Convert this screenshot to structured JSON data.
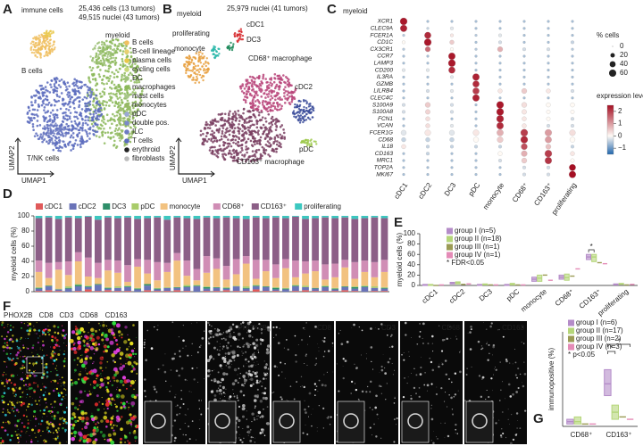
{
  "panel_a": {
    "letter": "A",
    "title": "immune cells",
    "subtitle_lines": [
      "25,436 cells (13 tumors)",
      "49,515 nuclei (43 tumors)"
    ],
    "cluster_labels": [
      {
        "name": "B cells",
        "color": "#e2b33c"
      },
      {
        "name": "myeloid",
        "color": "#8cb85a"
      },
      {
        "name": "T/NK cells",
        "color": "#5a6bbd"
      }
    ],
    "x_label": "UMAP1",
    "y_label": "UMAP2",
    "legend": [
      {
        "name": "B cells",
        "color": "#f0c060"
      },
      {
        "name": "B-cell lineage",
        "color": "#e8d070"
      },
      {
        "name": "plasma cells",
        "color": "#e9c84a"
      },
      {
        "name": "cycling cells",
        "color": "#c7d97a"
      },
      {
        "name": "DC",
        "color": "#9fc27a"
      },
      {
        "name": "macrophages",
        "color": "#8cb85a"
      },
      {
        "name": "mast cells",
        "color": "#a8c68a"
      },
      {
        "name": "monocytes",
        "color": "#95b864"
      },
      {
        "name": "pDC",
        "color": "#9ba9d4"
      },
      {
        "name": "double pos.",
        "color": "#7b8ac8"
      },
      {
        "name": "ILC",
        "color": "#6d7bc2"
      },
      {
        "name": "T cells",
        "color": "#5a6bbd"
      },
      {
        "name": "erythroid",
        "color": "#222222"
      },
      {
        "name": "fibroblasts",
        "color": "#bbbbbb"
      }
    ]
  },
  "panel_b": {
    "letter": "B",
    "title": "myeloid",
    "subtitle": "25,979 nuclei (41 tumors)",
    "x_label": "UMAP1",
    "y_label": "UMAP2",
    "cluster_labels": [
      {
        "name": "proliferating",
        "color": "#2ab7a9"
      },
      {
        "name": "cDC1",
        "color": "#d6282b"
      },
      {
        "name": "DC3",
        "color": "#1d8a5a"
      },
      {
        "name": "monocyte",
        "color": "#e8a040"
      },
      {
        "name": "CD68⁺ macrophage",
        "color": "#b8457a"
      },
      {
        "name": "cDC2",
        "color": "#3a4b9a"
      },
      {
        "name": "pDC",
        "color": "#9ec94c"
      },
      {
        "name": "CD163⁺ macrophage",
        "color": "#7a3f62"
      }
    ]
  },
  "panel_c": {
    "letter": "C",
    "title": "myeloid",
    "genes": [
      "XCR1",
      "CLEC9A",
      "FCER1A",
      "CD1C",
      "CX3CR1",
      "CCR7",
      "LAMP3",
      "CD200",
      "IL3RA",
      "GZMB",
      "LILRB4",
      "CLEC4C",
      "S100A9",
      "S100A8",
      "FCN1",
      "VCAN",
      "FCER1G",
      "CD68",
      "IL18",
      "CD163",
      "MRC1",
      "TOP2A",
      "MKI67"
    ],
    "cell_types": [
      {
        "name": "cDC1",
        "color": "#d6282b"
      },
      {
        "name": "cDC2",
        "color": "#3a4b9a"
      },
      {
        "name": "DC3",
        "color": "#1d8a5a"
      },
      {
        "name": "pDC",
        "color": "#9ec94c"
      },
      {
        "name": "monocyte",
        "color": "#e8a040"
      },
      {
        "name": "CD68⁺",
        "color": "#b8457a"
      },
      {
        "name": "CD163⁺",
        "color": "#7a3f62"
      },
      {
        "name": "proliferating",
        "color": "#2ab7a9"
      }
    ],
    "pct": [
      [
        60,
        5,
        5,
        5,
        5,
        5,
        5,
        5
      ],
      [
        55,
        5,
        10,
        5,
        5,
        5,
        5,
        5
      ],
      [
        5,
        50,
        10,
        5,
        10,
        5,
        5,
        5
      ],
      [
        10,
        60,
        20,
        5,
        10,
        5,
        5,
        10
      ],
      [
        5,
        30,
        10,
        5,
        30,
        10,
        10,
        5
      ],
      [
        5,
        5,
        55,
        5,
        5,
        5,
        5,
        5
      ],
      [
        5,
        5,
        60,
        5,
        5,
        5,
        5,
        5
      ],
      [
        10,
        10,
        50,
        5,
        5,
        5,
        5,
        5
      ],
      [
        5,
        5,
        10,
        55,
        5,
        5,
        5,
        5
      ],
      [
        5,
        5,
        5,
        50,
        5,
        5,
        5,
        5
      ],
      [
        5,
        10,
        10,
        50,
        20,
        30,
        20,
        10
      ],
      [
        5,
        5,
        5,
        55,
        5,
        5,
        5,
        5
      ],
      [
        10,
        30,
        10,
        5,
        60,
        30,
        20,
        20
      ],
      [
        10,
        25,
        10,
        5,
        60,
        25,
        15,
        15
      ],
      [
        5,
        20,
        5,
        5,
        60,
        20,
        15,
        10
      ],
      [
        5,
        20,
        10,
        5,
        55,
        20,
        10,
        10
      ],
      [
        30,
        40,
        30,
        40,
        50,
        60,
        55,
        40
      ],
      [
        20,
        20,
        20,
        30,
        40,
        60,
        50,
        30
      ],
      [
        20,
        10,
        10,
        10,
        10,
        45,
        30,
        10
      ],
      [
        5,
        10,
        5,
        5,
        20,
        40,
        60,
        20
      ],
      [
        5,
        5,
        5,
        5,
        10,
        30,
        55,
        15
      ],
      [
        5,
        5,
        5,
        5,
        5,
        10,
        10,
        50
      ],
      [
        5,
        5,
        5,
        5,
        5,
        10,
        10,
        55
      ]
    ],
    "expr": [
      [
        2.4,
        -0.6,
        -0.6,
        -0.6,
        -0.6,
        -0.6,
        -0.6,
        -0.6
      ],
      [
        2.3,
        -0.4,
        -0.2,
        -0.6,
        -0.6,
        -0.6,
        -0.6,
        -0.6
      ],
      [
        -0.5,
        2.2,
        0.2,
        -0.5,
        -0.2,
        -0.6,
        -0.6,
        -0.6
      ],
      [
        0,
        2.4,
        0.5,
        -0.6,
        -0.3,
        -0.6,
        -0.6,
        -0.4
      ],
      [
        -0.5,
        1.5,
        0,
        -0.5,
        0.8,
        -0.3,
        -0.3,
        -0.5
      ],
      [
        -0.6,
        -0.6,
        2.4,
        -0.6,
        -0.6,
        -0.6,
        -0.6,
        -0.6
      ],
      [
        -0.6,
        -0.6,
        2.4,
        -0.6,
        -0.6,
        -0.6,
        -0.6,
        -0.6
      ],
      [
        -0.2,
        -0.2,
        2.2,
        -0.6,
        -0.6,
        -0.6,
        -0.6,
        -0.6
      ],
      [
        -0.6,
        -0.6,
        -0.2,
        2.3,
        -0.6,
        -0.6,
        -0.6,
        -0.6
      ],
      [
        -0.6,
        -0.6,
        -0.6,
        2.2,
        -0.6,
        -0.6,
        -0.6,
        -0.6
      ],
      [
        -0.6,
        -0.3,
        -0.2,
        2.0,
        0.2,
        0.5,
        0.2,
        -0.3
      ],
      [
        -0.6,
        -0.6,
        -0.6,
        2.3,
        -0.6,
        -0.6,
        -0.6,
        -0.6
      ],
      [
        -0.3,
        0.5,
        -0.3,
        -0.6,
        2.4,
        0.3,
        0,
        0
      ],
      [
        -0.3,
        0.4,
        -0.3,
        -0.6,
        2.4,
        0.2,
        0,
        0
      ],
      [
        -0.6,
        0.3,
        -0.6,
        -0.6,
        2.3,
        0.2,
        0,
        -0.3
      ],
      [
        -0.6,
        0.3,
        -0.2,
        -0.6,
        2.2,
        0.2,
        -0.3,
        -0.3
      ],
      [
        -0.2,
        0.2,
        -0.2,
        0.2,
        0.8,
        2.0,
        1.0,
        0.3
      ],
      [
        -0.4,
        -0.4,
        -0.4,
        0,
        0.5,
        2.2,
        1.0,
        0
      ],
      [
        0.2,
        -0.4,
        -0.4,
        -0.4,
        -0.4,
        1.8,
        0.6,
        -0.4
      ],
      [
        -0.6,
        -0.4,
        -0.6,
        -0.6,
        0,
        0.8,
        2.0,
        0.2
      ],
      [
        -0.6,
        -0.6,
        -0.6,
        -0.6,
        -0.3,
        0.5,
        2.1,
        0
      ],
      [
        -0.6,
        -0.6,
        -0.6,
        -0.6,
        -0.6,
        -0.3,
        -0.3,
        2.5
      ],
      [
        -0.6,
        -0.6,
        -0.6,
        -0.6,
        -0.6,
        -0.3,
        -0.3,
        2.5
      ]
    ],
    "size_legend": {
      "title": "% cells",
      "values": [
        0,
        20,
        40,
        60
      ]
    },
    "color_legend": {
      "title": "expression level",
      "lim": [
        -1.5,
        2.5
      ],
      "ticks": [
        {
          "value": -1,
          "label": "−1"
        },
        0,
        1,
        2
      ]
    }
  },
  "panel_f": {
    "letter": "F",
    "channels": [
      {
        "name": "PHOX2B",
        "color": "#e8e020"
      },
      {
        "name": "CD8",
        "color": "#e040e0"
      },
      {
        "name": "CD3",
        "color": "#30d8e8"
      },
      {
        "name": "CD68",
        "color": "#ff3030"
      },
      {
        "name": "CD163",
        "color": "#30e040"
      }
    ],
    "gray_labels": [
      "PHOX2B",
      "CD8",
      "CD3",
      "CD68",
      "CD163"
    ]
  },
  "chart_data": [
    {
      "type": "bar",
      "stacked": true,
      "panel_label": "D",
      "y_label": "myeloid cells (%)",
      "categories": [
        null,
        null,
        null,
        null,
        null,
        null,
        null,
        null,
        null,
        null,
        null,
        null,
        null,
        null,
        null,
        null,
        null,
        null,
        null,
        null,
        null,
        null,
        null,
        null,
        null,
        null,
        null,
        null,
        null,
        null,
        null,
        null,
        null,
        null,
        null,
        null
      ],
      "series": [
        {
          "name": "cDC1",
          "color": "#e05a5a",
          "values": [
            1,
            2,
            1,
            0,
            1,
            3,
            1,
            2,
            1,
            1,
            0,
            2,
            1,
            1,
            2,
            1,
            0,
            1,
            1,
            2,
            1,
            1,
            3,
            1,
            1,
            0,
            1,
            2,
            1,
            1,
            1,
            2,
            1,
            0,
            1,
            1
          ]
        },
        {
          "name": "cDC2",
          "color": "#6a73b8",
          "values": [
            3,
            5,
            2,
            4,
            6,
            3,
            8,
            2,
            4,
            5,
            3,
            6,
            2,
            4,
            3,
            5,
            7,
            3,
            4,
            2,
            6,
            3,
            4,
            5,
            2,
            3,
            6,
            4,
            3,
            5,
            2,
            4,
            3,
            6,
            4,
            3
          ]
        },
        {
          "name": "DC3",
          "color": "#2f8f6a",
          "values": [
            1,
            1,
            0,
            1,
            2,
            1,
            1,
            1,
            0,
            1,
            1,
            2,
            1,
            0,
            1,
            1,
            1,
            2,
            1,
            1,
            0,
            1,
            1,
            1,
            2,
            1,
            1,
            0,
            1,
            1,
            1,
            1,
            2,
            1,
            0,
            1
          ]
        },
        {
          "name": "pDC",
          "color": "#a9cc6a",
          "values": [
            1,
            0,
            1,
            2,
            1,
            1,
            0,
            1,
            2,
            1,
            1,
            0,
            1,
            1,
            0,
            2,
            1,
            1,
            0,
            1,
            1,
            2,
            1,
            0,
            1,
            1,
            1,
            2,
            0,
            1,
            1,
            0,
            1,
            1,
            2,
            1
          ]
        },
        {
          "name": "monocyte",
          "color": "#f2c280",
          "values": [
            20,
            10,
            25,
            15,
            30,
            12,
            8,
            22,
            18,
            5,
            28,
            14,
            10,
            20,
            35,
            12,
            6,
            18,
            24,
            10,
            15,
            30,
            8,
            20,
            12,
            26,
            10,
            16,
            22,
            8,
            14,
            25,
            10,
            18,
            12,
            20
          ]
        },
        {
          "name": "CD68⁺",
          "color": "#d08db5",
          "values": [
            15,
            20,
            10,
            18,
            12,
            25,
            20,
            14,
            16,
            22,
            10,
            18,
            24,
            12,
            10,
            20,
            15,
            22,
            14,
            18,
            20,
            10,
            25,
            15,
            18,
            12,
            22,
            16,
            14,
            20,
            18,
            10,
            22,
            15,
            20,
            16
          ]
        },
        {
          "name": "CD163⁺",
          "color": "#8c5f87",
          "values": [
            56,
            60,
            57,
            58,
            45,
            54,
            57,
            56,
            56,
            63,
            53,
            55,
            59,
            57,
            47,
            56,
            66,
            51,
            53,
            64,
            54,
            49,
            56,
            55,
            62,
            54,
            58,
            56,
            56,
            62,
            60,
            56,
            57,
            56,
            59,
            55
          ]
        },
        {
          "name": "proliferating",
          "color": "#3cc8c0",
          "values": [
            3,
            2,
            4,
            2,
            3,
            1,
            5,
            2,
            3,
            2,
            4,
            3,
            2,
            5,
            2,
            3,
            4,
            2,
            3,
            2,
            3,
            4,
            2,
            3,
            2,
            3,
            1,
            4,
            3,
            2,
            3,
            2,
            4,
            3,
            2,
            3
          ]
        }
      ],
      "ylim": [
        0,
        100
      ],
      "yticks": [
        0,
        20,
        40,
        60,
        80,
        100
      ]
    },
    {
      "type": "box",
      "panel_label": "E",
      "y_label": "myeloid cells (%)",
      "categories": [
        "cDC1",
        "cDC2",
        "DC3",
        "pDC",
        "monocyte",
        "CD68⁺",
        "CD163⁺",
        "proliferating"
      ],
      "category_colors": [
        "#d6282b",
        "#3a4b9a",
        "#1d8a5a",
        "#9ec94c",
        "#e8a040",
        "#b8457a",
        "#7a3f62",
        "#2ab7a9"
      ],
      "series": [
        {
          "name": "group I (n=5)",
          "color": "#b48cc8",
          "values": [
            1,
            4,
            1,
            1,
            12,
            16,
            55,
            2
          ],
          "q1": [
            0,
            3,
            0,
            0,
            8,
            12,
            50,
            1
          ],
          "q3": [
            2,
            6,
            2,
            2,
            16,
            20,
            60,
            3
          ]
        },
        {
          "name": "group II (n=18)",
          "color": "#b5d67a",
          "values": [
            1,
            5,
            2,
            2,
            14,
            15,
            55,
            3
          ],
          "q1": [
            0,
            3,
            1,
            1,
            8,
            10,
            46,
            2
          ],
          "q3": [
            2,
            7,
            3,
            4,
            20,
            22,
            60,
            4
          ]
        },
        {
          "name": "group III (n=1)",
          "color": "#9b9b55",
          "values": [
            0,
            2,
            1,
            1,
            20,
            18,
            44,
            1
          ]
        },
        {
          "name": "group IV (n=1)",
          "color": "#e48bb7",
          "values": [
            1,
            3,
            1,
            1,
            10,
            32,
            42,
            2
          ]
        }
      ],
      "ylim": [
        0,
        100
      ],
      "yticks": [
        0,
        20,
        40,
        60,
        80,
        100
      ],
      "legend_note": "* FDR<0.05",
      "annotations": [
        "*"
      ]
    },
    {
      "type": "box",
      "panel_label": "G",
      "y_label": "immunopositive (%)",
      "categories": [
        "CD68⁺",
        "CD163⁺"
      ],
      "series": [
        {
          "name": "group I (n=6)",
          "color": "#b48cc8",
          "values": [
            2,
            18
          ],
          "q1": [
            1,
            13
          ],
          "q3": [
            3,
            24
          ]
        },
        {
          "name": "group II (n=17)",
          "color": "#b5d67a",
          "values": [
            2,
            6
          ],
          "q1": [
            1,
            3
          ],
          "q3": [
            4,
            9
          ]
        },
        {
          "name": "group III (n=2)",
          "color": "#9b9b55",
          "values": [
            1,
            4
          ]
        },
        {
          "name": "group IV (n=3)",
          "color": "#e48bb7",
          "values": [
            1,
            3
          ]
        }
      ],
      "ylim": [
        0,
        40
      ],
      "legend_note": "* p<0.05",
      "annotations": [
        "*",
        "*"
      ]
    }
  ]
}
